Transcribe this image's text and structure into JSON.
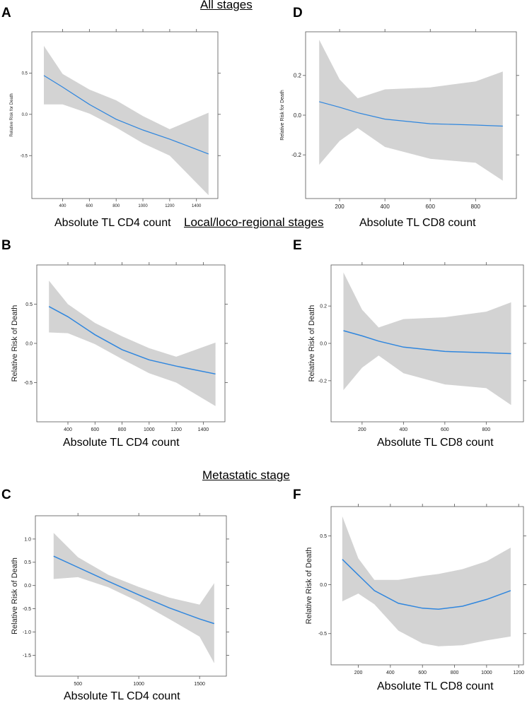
{
  "sections": {
    "all": "All stages",
    "local": "Local/loco-regional stages",
    "metastatic": "Metastatic stage"
  },
  "colors": {
    "line": "#2f86de",
    "band": "#d3d3d3",
    "axis": "#555555"
  },
  "chart_data": [
    {
      "type": "line",
      "letter": "A",
      "ylabel": "Relative Risk for Death",
      "xlabel": "Absolute TL CD4 count",
      "xlim": [
        170,
        1560
      ],
      "ylim": [
        -1.02,
        1.0
      ],
      "xticks": [
        400,
        600,
        800,
        1000,
        1200,
        1400
      ],
      "yticks": [
        0.5,
        0.0,
        -0.5
      ],
      "x": [
        260,
        400,
        600,
        800,
        1000,
        1200,
        1490
      ],
      "y": [
        0.47,
        0.33,
        0.12,
        -0.06,
        -0.19,
        -0.3,
        -0.48
      ],
      "lower": [
        0.12,
        0.12,
        0.01,
        -0.16,
        -0.35,
        -0.5,
        -0.98
      ],
      "upper": [
        0.83,
        0.49,
        0.3,
        0.17,
        -0.02,
        -0.18,
        0.02
      ]
    },
    {
      "type": "line",
      "letter": "D",
      "ylabel": "Relative Risk for Death",
      "xlabel": "Absolute TL CD8 count",
      "xlim": [
        50,
        980
      ],
      "ylim": [
        -0.42,
        0.42
      ],
      "xticks": [
        200,
        400,
        600,
        800
      ],
      "yticks": [
        0.2,
        0.0,
        -0.2
      ],
      "x": [
        110,
        200,
        280,
        400,
        600,
        800,
        920
      ],
      "y": [
        0.068,
        0.04,
        0.012,
        -0.02,
        -0.043,
        -0.05,
        -0.055
      ],
      "lower": [
        -0.25,
        -0.13,
        -0.065,
        -0.16,
        -0.22,
        -0.24,
        -0.33
      ],
      "upper": [
        0.38,
        0.18,
        0.085,
        0.13,
        0.14,
        0.17,
        0.22
      ]
    },
    {
      "type": "line",
      "letter": "B",
      "ylabel": "Relative Risk of Death",
      "xlabel": "Absolute TL CD4 count",
      "xlim": [
        170,
        1560
      ],
      "ylim": [
        -1.0,
        1.0
      ],
      "xticks": [
        400,
        600,
        800,
        1000,
        1200,
        1400
      ],
      "yticks": [
        0.5,
        0.0,
        -0.5
      ],
      "x": [
        260,
        400,
        600,
        800,
        1000,
        1200,
        1490
      ],
      "y": [
        0.47,
        0.34,
        0.11,
        -0.08,
        -0.21,
        -0.29,
        -0.39
      ],
      "lower": [
        0.14,
        0.13,
        -0.01,
        -0.2,
        -0.38,
        -0.5,
        -0.8
      ],
      "upper": [
        0.8,
        0.5,
        0.26,
        0.09,
        -0.06,
        -0.17,
        0.01
      ]
    },
    {
      "type": "line",
      "letter": "E",
      "ylabel": "Relative Risk of Death",
      "xlabel": "Absolute TL CD8 count",
      "xlim": [
        50,
        980
      ],
      "ylim": [
        -0.42,
        0.42
      ],
      "xticks": [
        200,
        400,
        600,
        800
      ],
      "yticks": [
        0.2,
        0.0,
        -0.2
      ],
      "x": [
        110,
        200,
        280,
        400,
        600,
        800,
        920
      ],
      "y": [
        0.068,
        0.04,
        0.012,
        -0.02,
        -0.043,
        -0.05,
        -0.055
      ],
      "lower": [
        -0.25,
        -0.13,
        -0.065,
        -0.16,
        -0.22,
        -0.24,
        -0.33
      ],
      "upper": [
        0.38,
        0.18,
        0.085,
        0.13,
        0.14,
        0.17,
        0.22
      ]
    },
    {
      "type": "line",
      "letter": "C",
      "ylabel": "Relative Risk of Death",
      "xlabel": "Absolute TL CD4 count",
      "xlim": [
        150,
        1720
      ],
      "ylim": [
        -1.95,
        1.5
      ],
      "xticks": [
        500,
        1000,
        1500
      ],
      "yticks": [
        1.0,
        0.5,
        0.0,
        -0.5,
        -1.0,
        -1.5
      ],
      "x": [
        300,
        500,
        750,
        1000,
        1250,
        1500,
        1620
      ],
      "y": [
        0.63,
        0.39,
        0.09,
        -0.2,
        -0.48,
        -0.72,
        -0.82
      ],
      "lower": [
        0.14,
        0.18,
        -0.04,
        -0.35,
        -0.72,
        -1.1,
        -1.67
      ],
      "upper": [
        1.13,
        0.61,
        0.23,
        -0.03,
        -0.26,
        -0.41,
        0.05
      ]
    },
    {
      "type": "line",
      "letter": "F",
      "ylabel": "Relative Risk of Death",
      "xlabel": "Absolute TL CD8 count",
      "xlim": [
        30,
        1230
      ],
      "ylim": [
        -0.82,
        0.8
      ],
      "xticks": [
        200,
        400,
        600,
        800,
        1000,
        1200
      ],
      "yticks": [
        0.5,
        0.0,
        -0.5
      ],
      "x": [
        100,
        200,
        300,
        450,
        600,
        700,
        850,
        1000,
        1150
      ],
      "y": [
        0.26,
        0.1,
        -0.06,
        -0.19,
        -0.24,
        -0.25,
        -0.22,
        -0.15,
        -0.06
      ],
      "lower": [
        -0.17,
        -0.09,
        -0.2,
        -0.47,
        -0.6,
        -0.63,
        -0.62,
        -0.57,
        -0.53
      ],
      "upper": [
        0.7,
        0.27,
        0.05,
        0.05,
        0.09,
        0.11,
        0.16,
        0.24,
        0.38
      ]
    }
  ]
}
